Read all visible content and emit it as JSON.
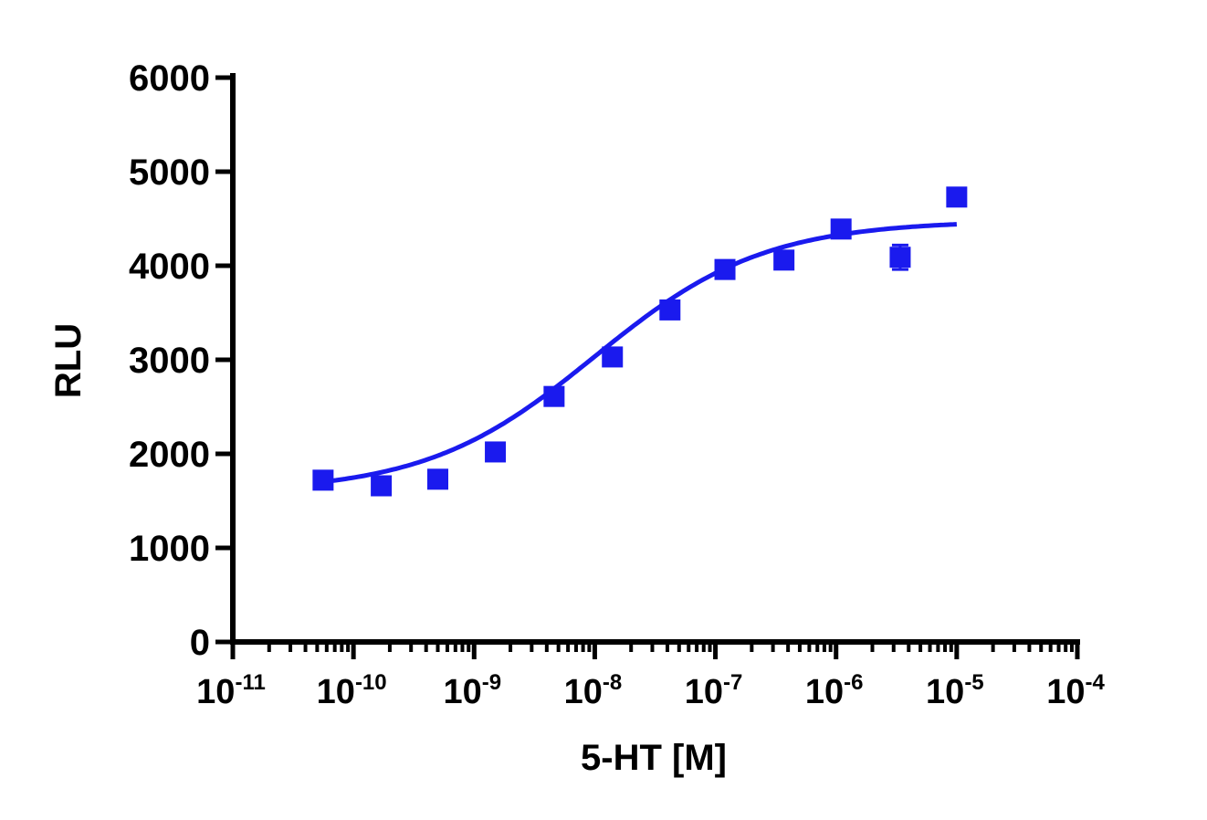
{
  "chart_data": {
    "type": "scatter",
    "xlabel": "5-HT [M]",
    "ylabel": "RLU",
    "x_scale": "log",
    "xlim": [
      1e-11,
      0.0001
    ],
    "ylim": [
      0,
      6000
    ],
    "x_ticks": [
      {
        "base": "10",
        "exp": "-11",
        "value": 1e-11
      },
      {
        "base": "10",
        "exp": "-10",
        "value": 1e-10
      },
      {
        "base": "10",
        "exp": "-9",
        "value": 1e-09
      },
      {
        "base": "10",
        "exp": "-8",
        "value": 1e-08
      },
      {
        "base": "10",
        "exp": "-7",
        "value": 1e-07
      },
      {
        "base": "10",
        "exp": "-6",
        "value": 1e-06
      },
      {
        "base": "10",
        "exp": "-5",
        "value": 1e-05
      },
      {
        "base": "10",
        "exp": "-4",
        "value": 0.0001
      }
    ],
    "y_ticks": [
      "0",
      "1000",
      "2000",
      "3000",
      "4000",
      "5000",
      "6000"
    ],
    "grid": false,
    "legend": "none",
    "colors": {
      "series": "#1a1aee",
      "axis": "#000000"
    },
    "series": [
      {
        "marker": "square",
        "points": [
          {
            "x": 5.6e-11,
            "y": 1720
          },
          {
            "x": 1.7e-10,
            "y": 1660
          },
          {
            "x": 5e-10,
            "y": 1730
          },
          {
            "x": 1.5e-09,
            "y": 2020
          },
          {
            "x": 4.6e-09,
            "y": 2610
          },
          {
            "x": 1.4e-08,
            "y": 3030
          },
          {
            "x": 4.2e-08,
            "y": 3530
          },
          {
            "x": 1.2e-07,
            "y": 3960
          },
          {
            "x": 3.7e-07,
            "y": 4060
          },
          {
            "x": 1.1e-06,
            "y": 4390
          },
          {
            "x": 3.4e-06,
            "y": 4090,
            "err": 130
          },
          {
            "x": 1e-05,
            "y": 4730
          }
        ],
        "fit": {
          "model": "sigmoidal dose-response",
          "bottom": 1590,
          "top": 4480,
          "log_ec50": -8.0,
          "hill": 0.62,
          "x_range": [
            5.6e-11,
            1e-05
          ]
        }
      }
    ]
  }
}
